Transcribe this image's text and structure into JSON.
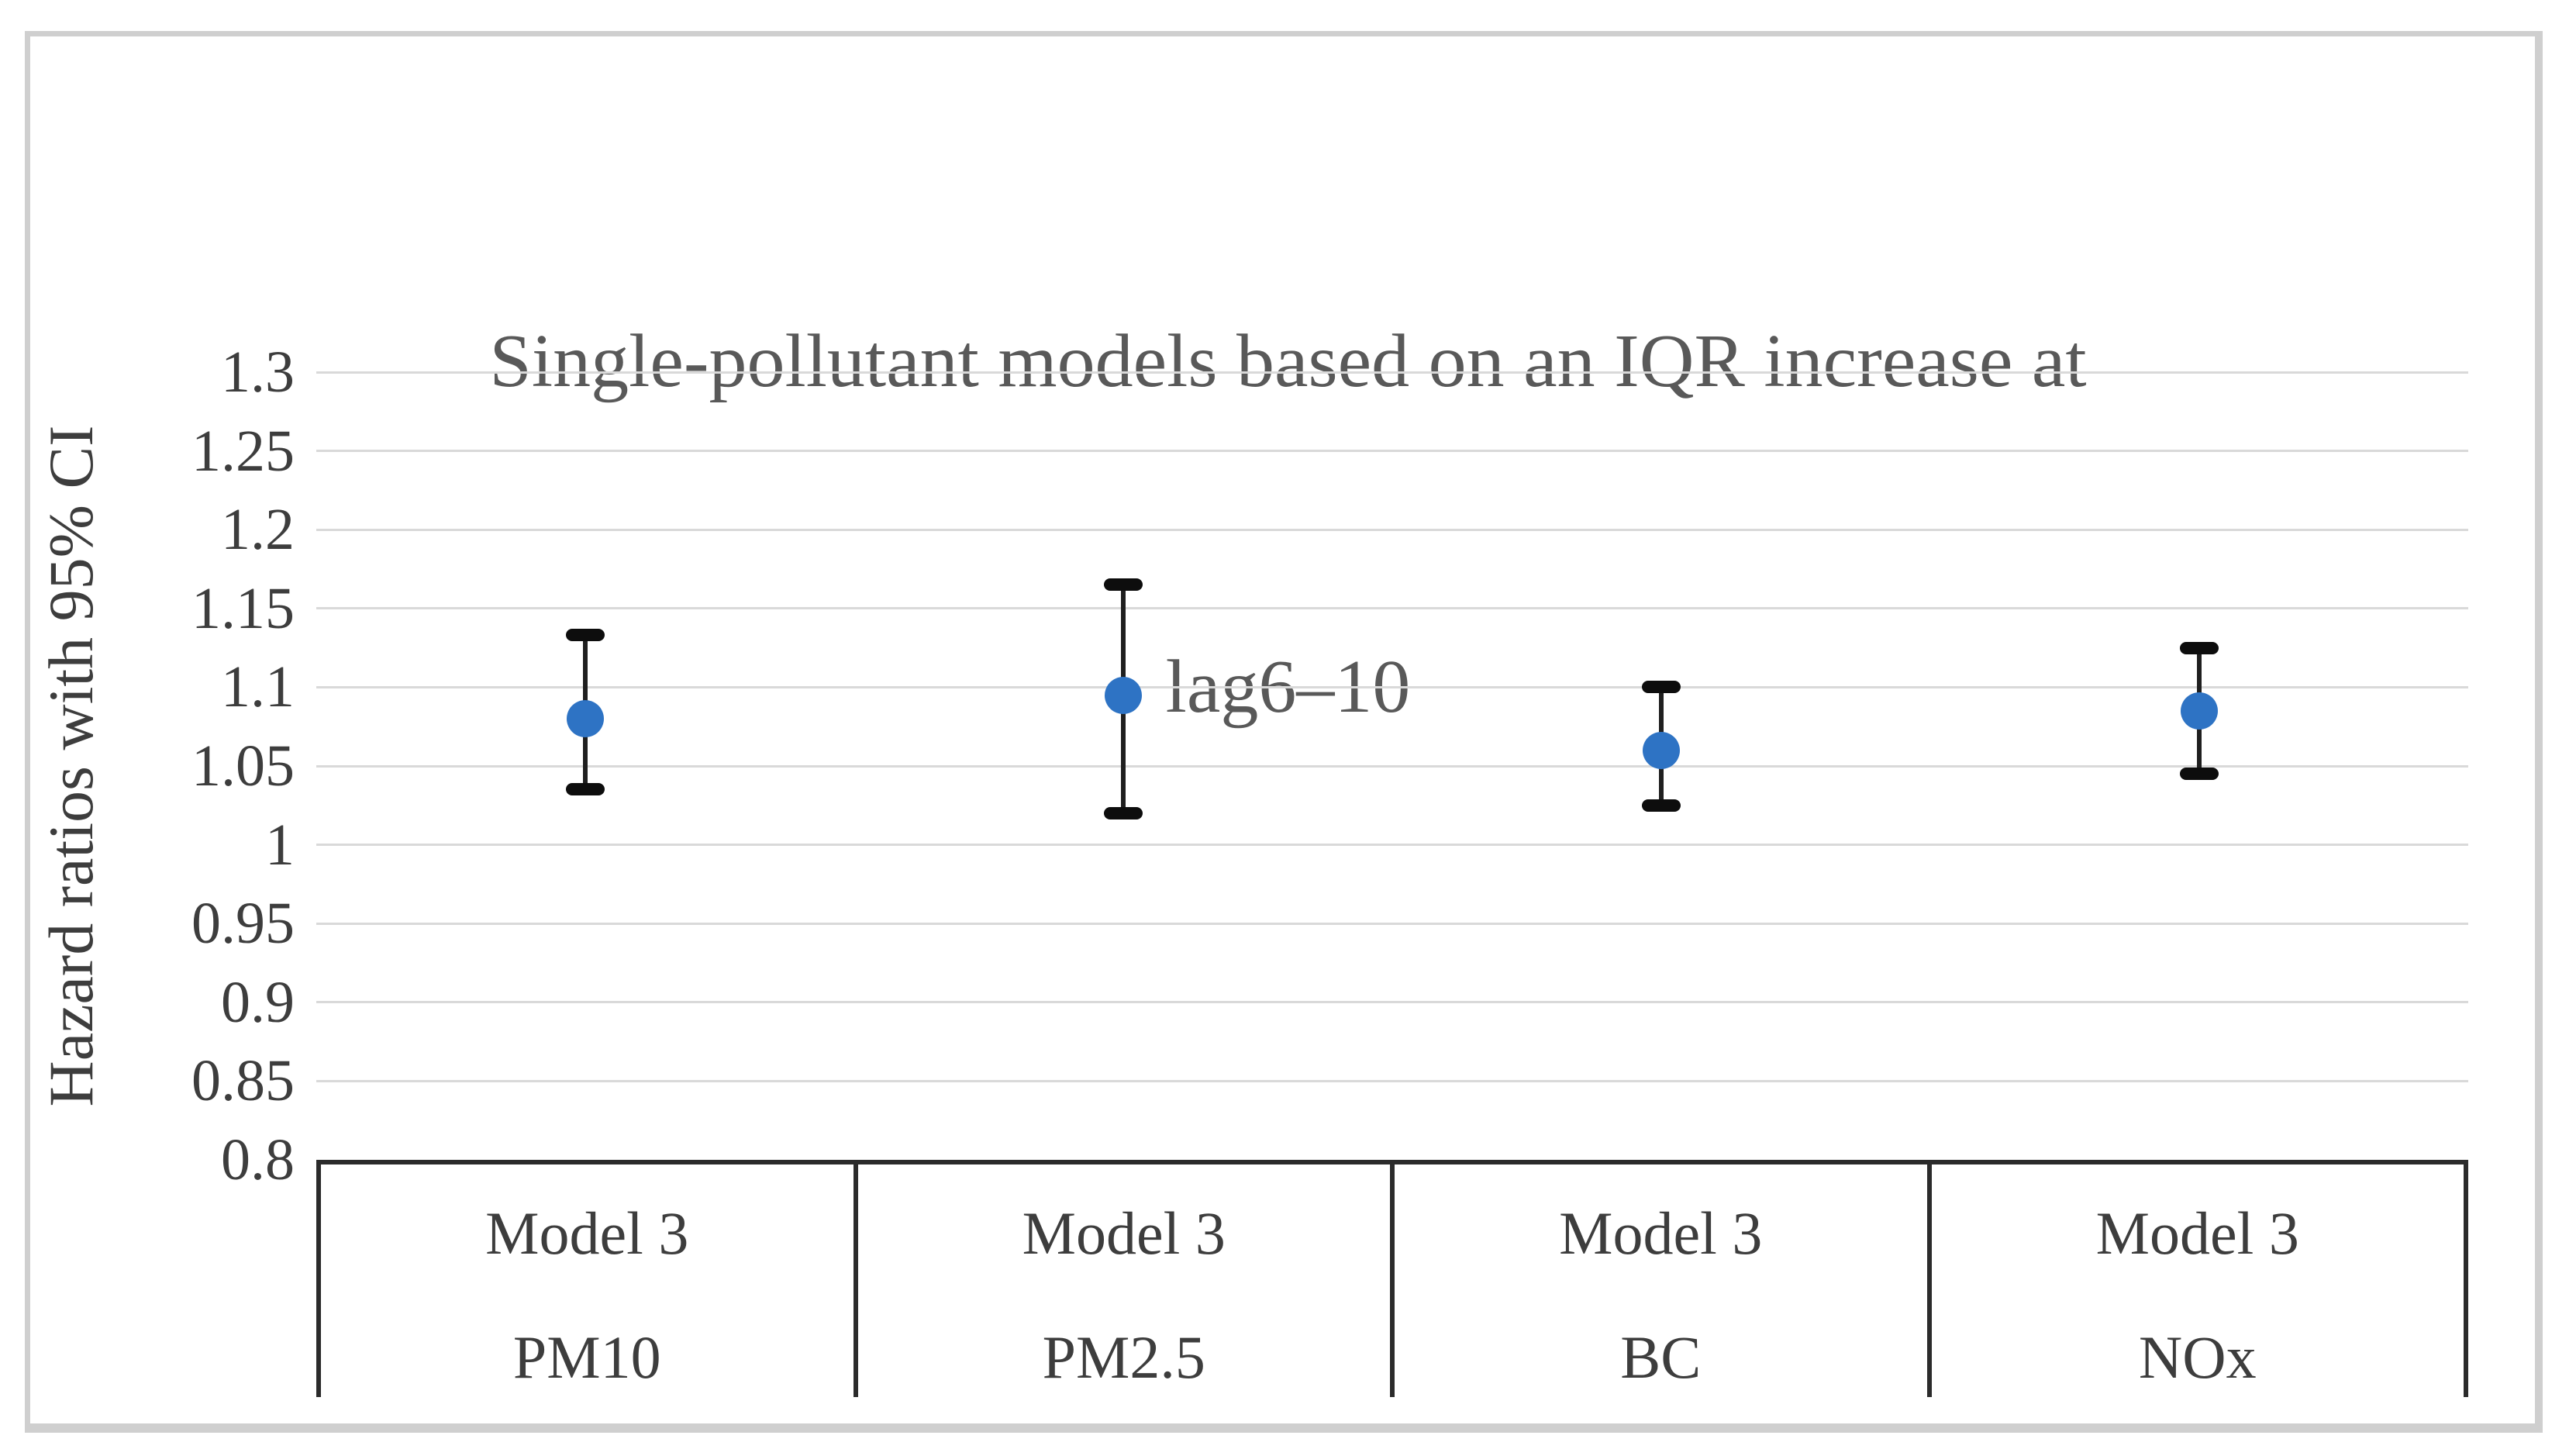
{
  "figure": {
    "background": "#ffffff",
    "border_color": "#cfcfcf"
  },
  "chart_data": {
    "type": "scatter",
    "subtype": "point-with-error-bars",
    "title": "Single-pollutant models based on an IQR increase at lag6–10",
    "title_lines": [
      "Single-pollutant models based on an IQR increase at",
      "lag6–10"
    ],
    "xlabel": "",
    "ylabel": "Hazard ratios with 95% CI",
    "ylim": [
      0.8,
      1.3
    ],
    "ytick_step": 0.05,
    "grid": true,
    "legend": "none",
    "yticks": [
      {
        "value": 1.3,
        "label": "1.3"
      },
      {
        "value": 1.25,
        "label": "1.25"
      },
      {
        "value": 1.2,
        "label": "1.2"
      },
      {
        "value": 1.15,
        "label": "1.15"
      },
      {
        "value": 1.1,
        "label": "1.1"
      },
      {
        "value": 1.05,
        "label": "1.05"
      },
      {
        "value": 1.0,
        "label": "1"
      },
      {
        "value": 0.95,
        "label": "0.95"
      },
      {
        "value": 0.9,
        "label": "0.9"
      },
      {
        "value": 0.85,
        "label": "0.85"
      },
      {
        "value": 0.8,
        "label": "0.8"
      }
    ],
    "categories": [
      {
        "model": "Model 3",
        "pollutant": "PM10"
      },
      {
        "model": "Model 3",
        "pollutant": "PM2.5"
      },
      {
        "model": "Model 3",
        "pollutant": "BC"
      },
      {
        "model": "Model 3",
        "pollutant": "NOx"
      }
    ],
    "series": [
      {
        "name": "Hazard ratio with 95% CI",
        "points": [
          {
            "category": "PM10",
            "hr": 1.08,
            "ci_low": 1.035,
            "ci_high": 1.133
          },
          {
            "category": "PM2.5",
            "hr": 1.095,
            "ci_low": 1.02,
            "ci_high": 1.165
          },
          {
            "category": "BC",
            "hr": 1.06,
            "ci_low": 1.025,
            "ci_high": 1.1
          },
          {
            "category": "NOx",
            "hr": 1.085,
            "ci_low": 1.045,
            "ci_high": 1.125
          }
        ]
      }
    ]
  },
  "style": {
    "marker_color": "#2e73c4",
    "error_bar_color": "#1f1f1f",
    "cap_color": "#0d0d0d",
    "gridline_color": "#d9d9d9",
    "table_border_color": "#2b2b2b",
    "title_color": "#595959",
    "axis_text_color": "#3d3d3d",
    "frame_color": "#cfcfcf",
    "background": "#ffffff"
  }
}
